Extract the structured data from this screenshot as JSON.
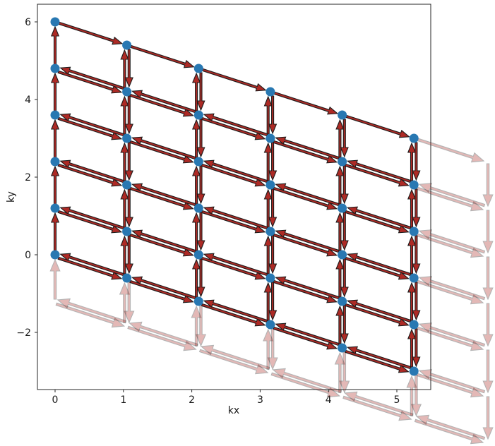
{
  "chart_data": {
    "type": "scatter",
    "subtype": "k-lattice hopping quiver",
    "title": "",
    "xlabel": "kx",
    "ylabel": "ky",
    "x_ticks": {
      "values": [
        0,
        1,
        2,
        3,
        4,
        5
      ],
      "labels": [
        "0",
        "1",
        "2",
        "3",
        "4",
        "5"
      ]
    },
    "y_ticks": {
      "values": [
        -2,
        0,
        2,
        4,
        6
      ],
      "labels": [
        "−2",
        "0",
        "2",
        "4",
        "6"
      ]
    },
    "xlim": [
      -0.26,
      5.5
    ],
    "ylim": [
      -3.47,
      6.45
    ],
    "grid": false,
    "legend": false,
    "lattice": {
      "n_cols": 6,
      "n_rows": 6,
      "a1": [
        1.05,
        -0.6
      ],
      "a2": [
        0.0,
        1.2
      ],
      "origin": [
        0.0,
        0.0
      ]
    },
    "sites": [
      [
        0,
        0
      ],
      [
        0,
        1.2
      ],
      [
        0,
        2.4
      ],
      [
        0,
        3.6
      ],
      [
        0,
        4.8
      ],
      [
        0,
        6
      ],
      [
        1.05,
        -0.6
      ],
      [
        1.05,
        0.6
      ],
      [
        1.05,
        1.8
      ],
      [
        1.05,
        3
      ],
      [
        1.05,
        4.2
      ],
      [
        1.05,
        5.4
      ],
      [
        2.1,
        -1.2
      ],
      [
        2.1,
        0
      ],
      [
        2.1,
        1.2
      ],
      [
        2.1,
        2.4
      ],
      [
        2.1,
        3.6
      ],
      [
        2.1,
        4.8
      ],
      [
        3.15,
        -1.8
      ],
      [
        3.15,
        -0.6
      ],
      [
        3.15,
        0.6
      ],
      [
        3.15,
        1.8
      ],
      [
        3.15,
        3
      ],
      [
        3.15,
        4.2
      ],
      [
        4.2,
        -2.4
      ],
      [
        4.2,
        -1.2
      ],
      [
        4.2,
        0
      ],
      [
        4.2,
        1.2
      ],
      [
        4.2,
        2.4
      ],
      [
        4.2,
        3.6
      ],
      [
        5.25,
        -3
      ],
      [
        5.25,
        -1.8
      ],
      [
        5.25,
        -0.6
      ],
      [
        5.25,
        0.6
      ],
      [
        5.25,
        1.8
      ],
      [
        5.25,
        3
      ]
    ],
    "solid_arrows": {
      "vertical_up_columns": [
        0,
        1,
        2,
        3,
        4,
        5
      ],
      "vertical_down_columns": [
        1,
        2,
        3,
        4,
        5
      ],
      "horizontal_right_rows": [
        0,
        1,
        2,
        3,
        4,
        5
      ],
      "horizontal_left_rows": [
        0,
        1,
        2,
        3,
        4
      ]
    },
    "wrapped_faded_arrows": {
      "bottom_up_into_row0_columns": [
        0,
        1,
        2,
        3,
        4,
        5
      ],
      "bottom_down_to_ghost_columns": [
        1,
        2,
        3,
        4,
        5
      ],
      "ghost_row_horizontal_pair_bonds": 6,
      "right_out_to_ghost_rows": [
        0,
        1,
        2,
        3,
        4,
        5
      ],
      "right_back_from_ghost_rows": [
        0,
        1,
        2,
        3,
        4
      ],
      "ghost_column_down_bonds": 6
    },
    "colors": {
      "site": "#2878b2",
      "arrow_fill": "#ad2a25",
      "arrow_edge": "#1c1c1c",
      "faded_opacity": 0.33,
      "spine": "#262626",
      "background": "#ffffff"
    }
  }
}
